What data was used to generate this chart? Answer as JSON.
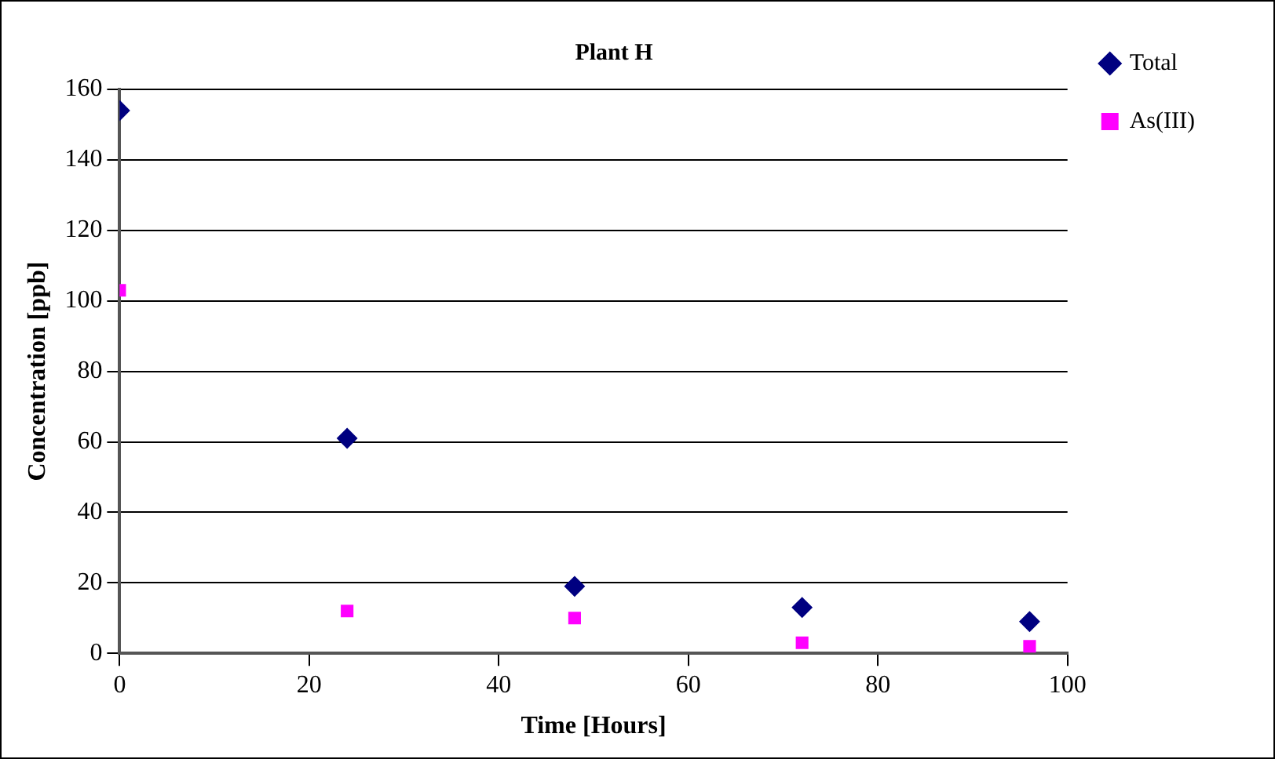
{
  "chart_data": {
    "type": "scatter",
    "title": "Plant H",
    "xlabel": "Time [Hours]",
    "ylabel": "Concentration [ppb]",
    "x": [
      0,
      24,
      48,
      72,
      96
    ],
    "series": [
      {
        "name": "Total",
        "color": "#000080",
        "marker": "diamond",
        "values": [
          154,
          61,
          19,
          13,
          9
        ]
      },
      {
        "name": "As(III)",
        "color": "#ff00ff",
        "marker": "square",
        "values": [
          103,
          12,
          10,
          3,
          2
        ]
      }
    ],
    "xlim": [
      0,
      100
    ],
    "xticks": [
      0,
      20,
      40,
      60,
      80,
      100
    ],
    "ylim": [
      0,
      160
    ],
    "yticks": [
      0,
      20,
      40,
      60,
      80,
      100,
      120,
      140,
      160
    ],
    "grid": "y",
    "legend": "right"
  }
}
